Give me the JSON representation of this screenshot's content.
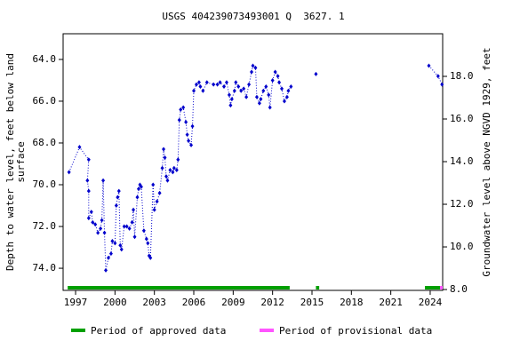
{
  "chart_data": {
    "type": "line",
    "title": "USGS 404239073493001 Q  3627. 1",
    "y_label": [
      "Depth to water level, feet below land",
      "surface"
    ],
    "y2_label": "Groundwater level above NGVD 1929, feet",
    "xlim": [
      1996.05,
      2024.95
    ],
    "xticks": [
      1997,
      2000,
      2003,
      2006,
      2009,
      2012,
      2015,
      2018,
      2021,
      2024
    ],
    "ylim": [
      62.77,
      75.06
    ],
    "y_inverted": true,
    "yticks": [
      {
        "value": 64,
        "label": "64.0"
      },
      {
        "value": 66,
        "label": "66.0"
      },
      {
        "value": 68,
        "label": "68.0"
      },
      {
        "value": 70,
        "label": "70.0"
      },
      {
        "value": 72,
        "label": "72.0"
      },
      {
        "value": 74,
        "label": "74.0"
      }
    ],
    "y2lim": [
      7.96,
      20.0
    ],
    "y2ticks": [
      {
        "value": 8,
        "label": "8.0"
      },
      {
        "value": 10,
        "label": "10.0"
      },
      {
        "value": 12,
        "label": "12.0"
      },
      {
        "value": 14,
        "label": "14.0"
      },
      {
        "value": 16,
        "label": "16.0"
      },
      {
        "value": 18,
        "label": "18.0"
      }
    ],
    "series": [
      {
        "color": "#0000cc",
        "x": [
          1996.5,
          1997.3,
          1998.0,
          1997.9,
          1998.0,
          1998.0,
          1998.2,
          1998.3,
          1998.5,
          1998.7,
          1998.9,
          1999.0,
          1999.1,
          1999.2,
          1999.3,
          1999.5,
          1999.7,
          1999.8,
          2000.0,
          2000.1,
          2000.2,
          2000.3,
          2000.4,
          2000.5,
          2000.7,
          2000.9,
          2001.1,
          2001.3,
          2001.4,
          2001.5,
          2001.7,
          2001.8,
          2001.9,
          2002.0,
          2002.2,
          2002.4,
          2002.5,
          2002.6,
          2002.7,
          2002.9,
          2003.0,
          2003.2,
          2003.4,
          2003.6,
          2003.7,
          2003.8,
          2003.9,
          2004.0,
          2004.2,
          2004.4,
          2004.5,
          2004.7,
          2004.8,
          2004.9,
          2005.0,
          2005.2,
          2005.4,
          2005.5,
          2005.6,
          2005.8,
          2005.9,
          2006.0,
          2006.2,
          2006.4,
          2006.5,
          2006.7,
          2007.0,
          2007.5,
          2007.8,
          2008.0,
          2008.3,
          2008.5,
          2008.7,
          2008.8,
          2008.9,
          2009.1,
          2009.2,
          2009.4,
          2009.6,
          2009.8,
          2010.0,
          2010.2,
          2010.4,
          2010.5,
          2010.7,
          2010.8,
          2011.0,
          2011.1,
          2011.3,
          2011.5,
          2011.7,
          2011.8,
          2012.0,
          2012.2,
          2012.4,
          2012.5,
          2012.7,
          2012.9,
          2013.1,
          2013.2,
          2013.4,
          null,
          2015.3,
          null,
          2023.9,
          2024.6,
          2024.9
        ],
        "values": [
          69.4,
          68.2,
          68.8,
          69.8,
          70.3,
          71.6,
          71.3,
          71.8,
          71.9,
          72.3,
          72.1,
          71.7,
          69.8,
          72.3,
          74.1,
          73.5,
          73.3,
          72.7,
          72.8,
          71.0,
          70.6,
          70.3,
          72.9,
          73.1,
          72.0,
          72.0,
          72.1,
          71.8,
          71.2,
          72.5,
          70.6,
          70.2,
          70.0,
          70.1,
          72.2,
          72.6,
          72.8,
          73.4,
          73.5,
          70.0,
          71.2,
          70.8,
          70.4,
          69.2,
          68.3,
          68.7,
          69.6,
          69.8,
          69.3,
          69.4,
          69.2,
          69.3,
          68.8,
          66.9,
          66.4,
          66.3,
          67.0,
          67.6,
          67.9,
          68.1,
          67.2,
          65.5,
          65.2,
          65.1,
          65.3,
          65.5,
          65.1,
          65.2,
          65.2,
          65.1,
          65.3,
          65.1,
          65.7,
          66.2,
          65.9,
          65.5,
          65.1,
          65.3,
          65.5,
          65.4,
          65.8,
          65.2,
          64.6,
          64.3,
          64.4,
          65.8,
          66.1,
          65.9,
          65.5,
          65.3,
          65.7,
          66.3,
          65.0,
          64.6,
          64.8,
          65.1,
          65.4,
          66.0,
          65.8,
          65.5,
          65.3,
          null,
          64.7,
          null,
          64.3,
          64.8,
          65.2
        ]
      }
    ],
    "periods": [
      {
        "name": "Period of approved data",
        "color": "#00a000",
        "spans": [
          [
            1996.4,
            2013.3
          ],
          [
            2015.3,
            2015.55
          ],
          [
            2023.6,
            2024.75
          ]
        ]
      },
      {
        "name": "Period of provisional data",
        "color": "#ff55ff",
        "spans": [
          [
            2024.75,
            2024.95
          ]
        ]
      }
    ]
  }
}
